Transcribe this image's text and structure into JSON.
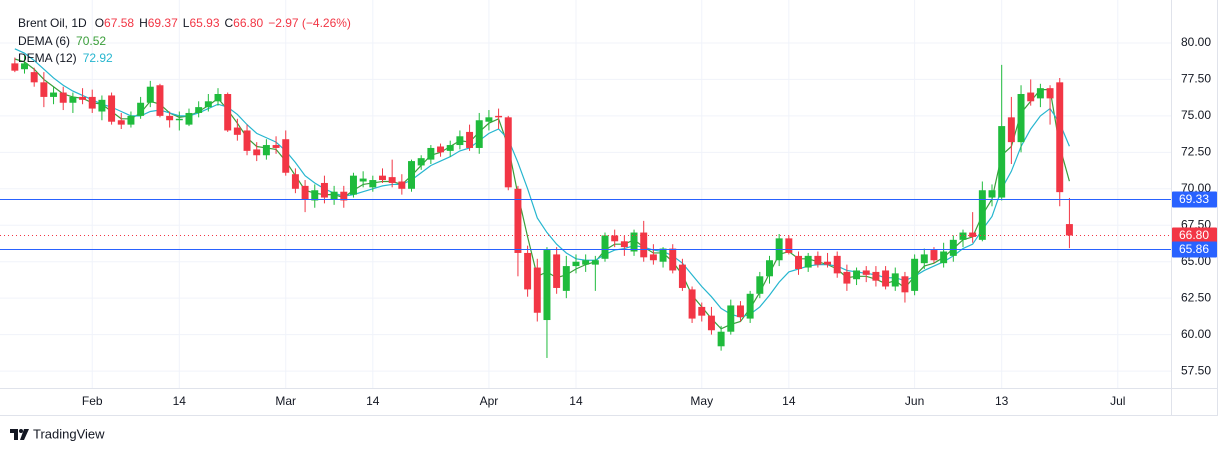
{
  "chart_data": {
    "type": "candlestick",
    "title": "Brent Oil, 1D",
    "ohlc_legend": [
      {
        "label": "O",
        "value": "67.58"
      },
      {
        "label": "H",
        "value": "69.37"
      },
      {
        "label": "L",
        "value": "65.93"
      },
      {
        "label": "C",
        "value": "66.80"
      }
    ],
    "change": "−2.97 (−4.26%)",
    "legend_value_color": "#f23645",
    "up_color": "#1fbb3c",
    "down_color": "#f23645",
    "categories": [
      null,
      null,
      null,
      null,
      null,
      null,
      null,
      null,
      "Feb",
      null,
      null,
      null,
      null,
      null,
      null,
      null,
      null,
      "14",
      null,
      null,
      null,
      null,
      null,
      null,
      null,
      null,
      null,
      null,
      "Mar",
      null,
      null,
      null,
      null,
      null,
      null,
      null,
      null,
      "14",
      null,
      null,
      null,
      null,
      null,
      null,
      null,
      null,
      null,
      null,
      null,
      "Apr",
      null,
      null,
      null,
      null,
      null,
      null,
      null,
      null,
      "14",
      null,
      null,
      null,
      null,
      null,
      null,
      null,
      null,
      null,
      null,
      null,
      null,
      "May",
      null,
      null,
      null,
      null,
      null,
      null,
      null,
      null,
      "14",
      null,
      null,
      null,
      null,
      null,
      null,
      null,
      null,
      null,
      null,
      null,
      null,
      "Jun",
      null,
      null,
      null,
      null,
      null,
      null,
      null,
      null,
      "13",
      null,
      null,
      null,
      null,
      null,
      null,
      null,
      null,
      null,
      null,
      null,
      "Jul",
      null,
      null,
      null,
      null,
      null
    ],
    "open": [
      78.6,
      78.2,
      78.0,
      77.3,
      76.3,
      76.6,
      75.9,
      76.3,
      76.3,
      75.3,
      76.4,
      74.7,
      74.4,
      75.0,
      75.9,
      77.1,
      75.0,
      74.7,
      74.4,
      75.2,
      75.6,
      76.0,
      76.5,
      74.2,
      74.0,
      72.7,
      72.3,
      73.0,
      73.4,
      71.0,
      70.2,
      69.2,
      70.4,
      69.3,
      69.8,
      69.6,
      70.5,
      70.1,
      70.9,
      70.8,
      70.5,
      70.0,
      71.6,
      72.0,
      72.9,
      72.6,
      73.0,
      73.9,
      72.8,
      74.6,
      75.0,
      74.9,
      70.0,
      65.6,
      64.6,
      61.0,
      65.5,
      63.0,
      64.7,
      64.8,
      64.8,
      65.2,
      66.8,
      66.4,
      65.7,
      67.0,
      65.5,
      65.0,
      65.9,
      64.8,
      63.1,
      61.9,
      61.3,
      59.2,
      60.2,
      62.0,
      61.1,
      62.8,
      64.0,
      65.1,
      66.6,
      65.4,
      64.6,
      65.4,
      65.0,
      65.4,
      64.3,
      63.8,
      64.4,
      64.3,
      64.4,
      63.3,
      64.0,
      63.0,
      64.9,
      65.8,
      64.9,
      65.4,
      66.5,
      67.0,
      66.5,
      69.4,
      69.4,
      74.9,
      73.2,
      76.6,
      76.2,
      76.9,
      77.3,
      67.58,
      null,
      null,
      null,
      null,
      null,
      null,
      null,
      null,
      null,
      null
    ],
    "high": [
      79.0,
      79.2,
      78.3,
      78.0,
      77.0,
      77.0,
      76.6,
      76.9,
      76.8,
      76.4,
      76.6,
      75.2,
      75.3,
      76.3,
      77.4,
      77.2,
      75.3,
      75.3,
      75.5,
      76.0,
      76.5,
      76.9,
      76.6,
      74.8,
      74.4,
      73.2,
      73.4,
      73.6,
      74.0,
      71.4,
      70.6,
      70.3,
      70.9,
      70.2,
      70.2,
      71.1,
      71.2,
      70.9,
      71.4,
      72.0,
      71.0,
      72.0,
      72.3,
      73.0,
      73.1,
      73.3,
      74.0,
      74.4,
      75.2,
      75.4,
      75.5,
      75.0,
      70.2,
      66.1,
      65.2,
      66.0,
      66.0,
      65.4,
      65.5,
      65.5,
      65.4,
      67.0,
      67.2,
      66.8,
      67.2,
      67.8,
      66.2,
      66.0,
      66.2,
      65.2,
      63.3,
      62.2,
      61.9,
      60.6,
      62.4,
      62.3,
      63.0,
      64.3,
      65.4,
      66.9,
      66.8,
      65.7,
      65.6,
      65.7,
      65.6,
      65.7,
      64.8,
      64.6,
      64.7,
      64.7,
      64.7,
      64.6,
      64.3,
      65.5,
      65.9,
      66.0,
      66.3,
      66.8,
      67.2,
      68.4,
      70.5,
      70.3,
      78.5,
      76.3,
      77.1,
      77.5,
      77.2,
      77.1,
      77.6,
      69.37,
      null,
      null,
      null,
      null,
      null,
      null,
      null,
      null,
      null,
      null
    ],
    "low": [
      78.0,
      77.9,
      77.0,
      75.6,
      75.8,
      75.4,
      75.2,
      75.8,
      75.2,
      74.7,
      74.4,
      74.1,
      74.2,
      74.8,
      75.6,
      74.9,
      74.2,
      74.0,
      74.3,
      74.9,
      75.3,
      75.7,
      73.9,
      73.3,
      72.3,
      71.9,
      72.0,
      72.4,
      70.9,
      69.7,
      68.4,
      68.7,
      69.0,
      68.9,
      68.7,
      69.4,
      70.1,
      69.8,
      70.4,
      70.1,
      69.6,
      69.8,
      71.3,
      71.7,
      72.2,
      72.2,
      72.7,
      72.6,
      72.4,
      74.0,
      74.1,
      69.9,
      64.0,
      62.6,
      60.9,
      58.4,
      62.8,
      62.5,
      64.2,
      64.3,
      63.0,
      65.0,
      66.0,
      65.4,
      65.4,
      65.0,
      64.8,
      64.6,
      64.2,
      63.0,
      60.8,
      60.9,
      60.0,
      58.9,
      60.0,
      60.9,
      60.8,
      62.5,
      63.5,
      64.7,
      65.5,
      64.1,
      64.3,
      64.6,
      64.6,
      63.9,
      63.0,
      63.4,
      63.6,
      63.3,
      63.1,
      63.0,
      62.2,
      62.7,
      64.5,
      64.9,
      64.6,
      65.0,
      66.0,
      66.3,
      66.4,
      68.8,
      69.2,
      71.7,
      72.5,
      75.7,
      75.6,
      74.4,
      68.8,
      65.93,
      null,
      null,
      null,
      null,
      null,
      null,
      null,
      null,
      null,
      null
    ],
    "close": [
      78.1,
      78.6,
      77.3,
      76.3,
      76.6,
      75.9,
      76.3,
      76.1,
      75.5,
      76.1,
      74.6,
      74.4,
      75.0,
      75.9,
      77.0,
      75.0,
      74.7,
      74.8,
      75.2,
      75.6,
      76.0,
      76.5,
      74.0,
      73.7,
      72.6,
      72.3,
      73.0,
      72.8,
      71.1,
      70.0,
      69.3,
      69.9,
      69.4,
      69.8,
      69.2,
      70.9,
      70.7,
      70.6,
      70.6,
      70.4,
      70.0,
      71.9,
      72.1,
      72.8,
      72.5,
      73.0,
      73.6,
      72.8,
      74.7,
      74.9,
      74.9,
      70.1,
      65.6,
      63.1,
      61.5,
      65.8,
      63.2,
      64.7,
      65.0,
      65.1,
      65.1,
      66.8,
      66.4,
      66.0,
      67.0,
      65.3,
      65.1,
      65.9,
      64.4,
      63.2,
      61.1,
      61.3,
      60.3,
      60.2,
      62.0,
      61.2,
      62.8,
      64.0,
      65.1,
      66.6,
      65.6,
      64.5,
      65.4,
      64.8,
      64.8,
      64.2,
      63.5,
      64.4,
      64.1,
      63.7,
      63.3,
      64.2,
      62.9,
      65.2,
      65.5,
      65.1,
      65.7,
      66.5,
      67.0,
      66.7,
      69.9,
      69.9,
      74.3,
      73.2,
      76.5,
      76.0,
      76.9,
      76.2,
      69.77,
      66.8,
      null,
      null,
      null,
      null,
      null,
      null,
      null,
      null,
      null,
      null
    ],
    "series": [
      {
        "name": "DEMA (6)",
        "color": "#3a9e3a",
        "values": [
          78.9,
          78.7,
          78.2,
          77.5,
          77.0,
          76.5,
          76.3,
          76.2,
          75.9,
          75.8,
          75.3,
          74.8,
          74.8,
          75.2,
          76.0,
          75.8,
          75.2,
          74.9,
          75.0,
          75.3,
          75.7,
          76.2,
          75.4,
          74.5,
          73.5,
          72.9,
          72.8,
          72.7,
          71.9,
          70.9,
          69.9,
          69.7,
          69.6,
          69.6,
          69.4,
          69.9,
          70.3,
          70.4,
          70.5,
          70.5,
          70.3,
          70.9,
          71.6,
          72.3,
          72.5,
          72.9,
          73.3,
          73.2,
          73.9,
          74.5,
          74.8,
          72.9,
          69.6,
          66.7,
          64.0,
          64.3,
          63.9,
          64.1,
          64.5,
          64.8,
          65.0,
          65.8,
          66.2,
          66.2,
          66.5,
          66.0,
          65.6,
          65.6,
          65.0,
          64.1,
          62.7,
          61.9,
          61.1,
          60.4,
          60.7,
          60.9,
          61.8,
          62.9,
          64.2,
          65.5,
          65.7,
          65.2,
          65.2,
          65.0,
          64.8,
          64.5,
          63.9,
          64.0,
          64.0,
          63.8,
          63.5,
          63.7,
          63.2,
          64.0,
          64.7,
          64.9,
          65.3,
          65.9,
          66.5,
          66.7,
          68.2,
          69.3,
          72.3,
          72.9,
          75.2,
          76.0,
          76.8,
          76.8,
          72.9,
          70.52,
          null,
          null,
          null,
          null,
          null,
          null,
          null,
          null,
          null,
          null
        ]
      },
      {
        "name": "DEMA (12)",
        "color": "#26b6cf",
        "values": [
          79.6,
          79.3,
          78.8,
          78.2,
          77.6,
          77.1,
          76.7,
          76.4,
          76.1,
          75.8,
          75.6,
          75.3,
          75.0,
          75.0,
          75.3,
          75.4,
          75.2,
          75.0,
          75.0,
          75.2,
          75.5,
          75.8,
          75.6,
          75.1,
          74.4,
          73.8,
          73.5,
          73.2,
          72.6,
          71.8,
          70.9,
          70.4,
          70.0,
          69.7,
          69.5,
          69.6,
          69.8,
          70.0,
          70.2,
          70.3,
          70.3,
          70.6,
          71.1,
          71.6,
          71.9,
          72.2,
          72.6,
          72.8,
          73.3,
          73.8,
          74.1,
          73.4,
          71.8,
          70.0,
          68.0,
          67.0,
          66.2,
          65.6,
          65.2,
          65.1,
          65.1,
          65.5,
          65.8,
          65.9,
          66.1,
          66.0,
          65.8,
          65.7,
          65.4,
          64.9,
          64.1,
          63.3,
          62.6,
          61.8,
          61.4,
          61.2,
          61.4,
          61.9,
          62.7,
          63.6,
          64.3,
          64.5,
          64.7,
          64.8,
          64.8,
          64.7,
          64.4,
          64.3,
          64.2,
          64.1,
          63.9,
          63.9,
          63.7,
          64.0,
          64.4,
          64.7,
          65.0,
          65.4,
          65.9,
          66.2,
          67.2,
          68.1,
          70.0,
          71.2,
          72.9,
          74.1,
          75.0,
          75.5,
          74.5,
          72.92,
          null,
          null,
          null,
          null,
          null,
          null,
          null,
          null,
          null,
          null
        ]
      }
    ],
    "ylim": [
      56.34,
      82.26
    ],
    "yticks": [
      {
        "value": 57.5,
        "label": "57.50"
      },
      {
        "value": 60,
        "label": "60.00"
      },
      {
        "value": 62.5,
        "label": "62.50"
      },
      {
        "value": 65,
        "label": "65.00"
      },
      {
        "value": 67.5,
        "label": "67.50"
      },
      {
        "value": 70,
        "label": "70.00"
      },
      {
        "value": 72.5,
        "label": "72.50"
      },
      {
        "value": 75,
        "label": "75.00"
      },
      {
        "value": 77.5,
        "label": "77.50"
      },
      {
        "value": 80,
        "label": "80.00"
      }
    ],
    "grid": true,
    "price_lines": [
      {
        "value": 69.33,
        "label": "69.33",
        "color": "#2962ff",
        "style": "solid"
      },
      {
        "value": 66.8,
        "label": "66.80",
        "color": "#f23645",
        "style": "dotted"
      },
      {
        "value": 65.86,
        "label": "65.86",
        "color": "#2962ff",
        "style": "solid"
      }
    ]
  },
  "footer": {
    "brand": "TradingView"
  }
}
